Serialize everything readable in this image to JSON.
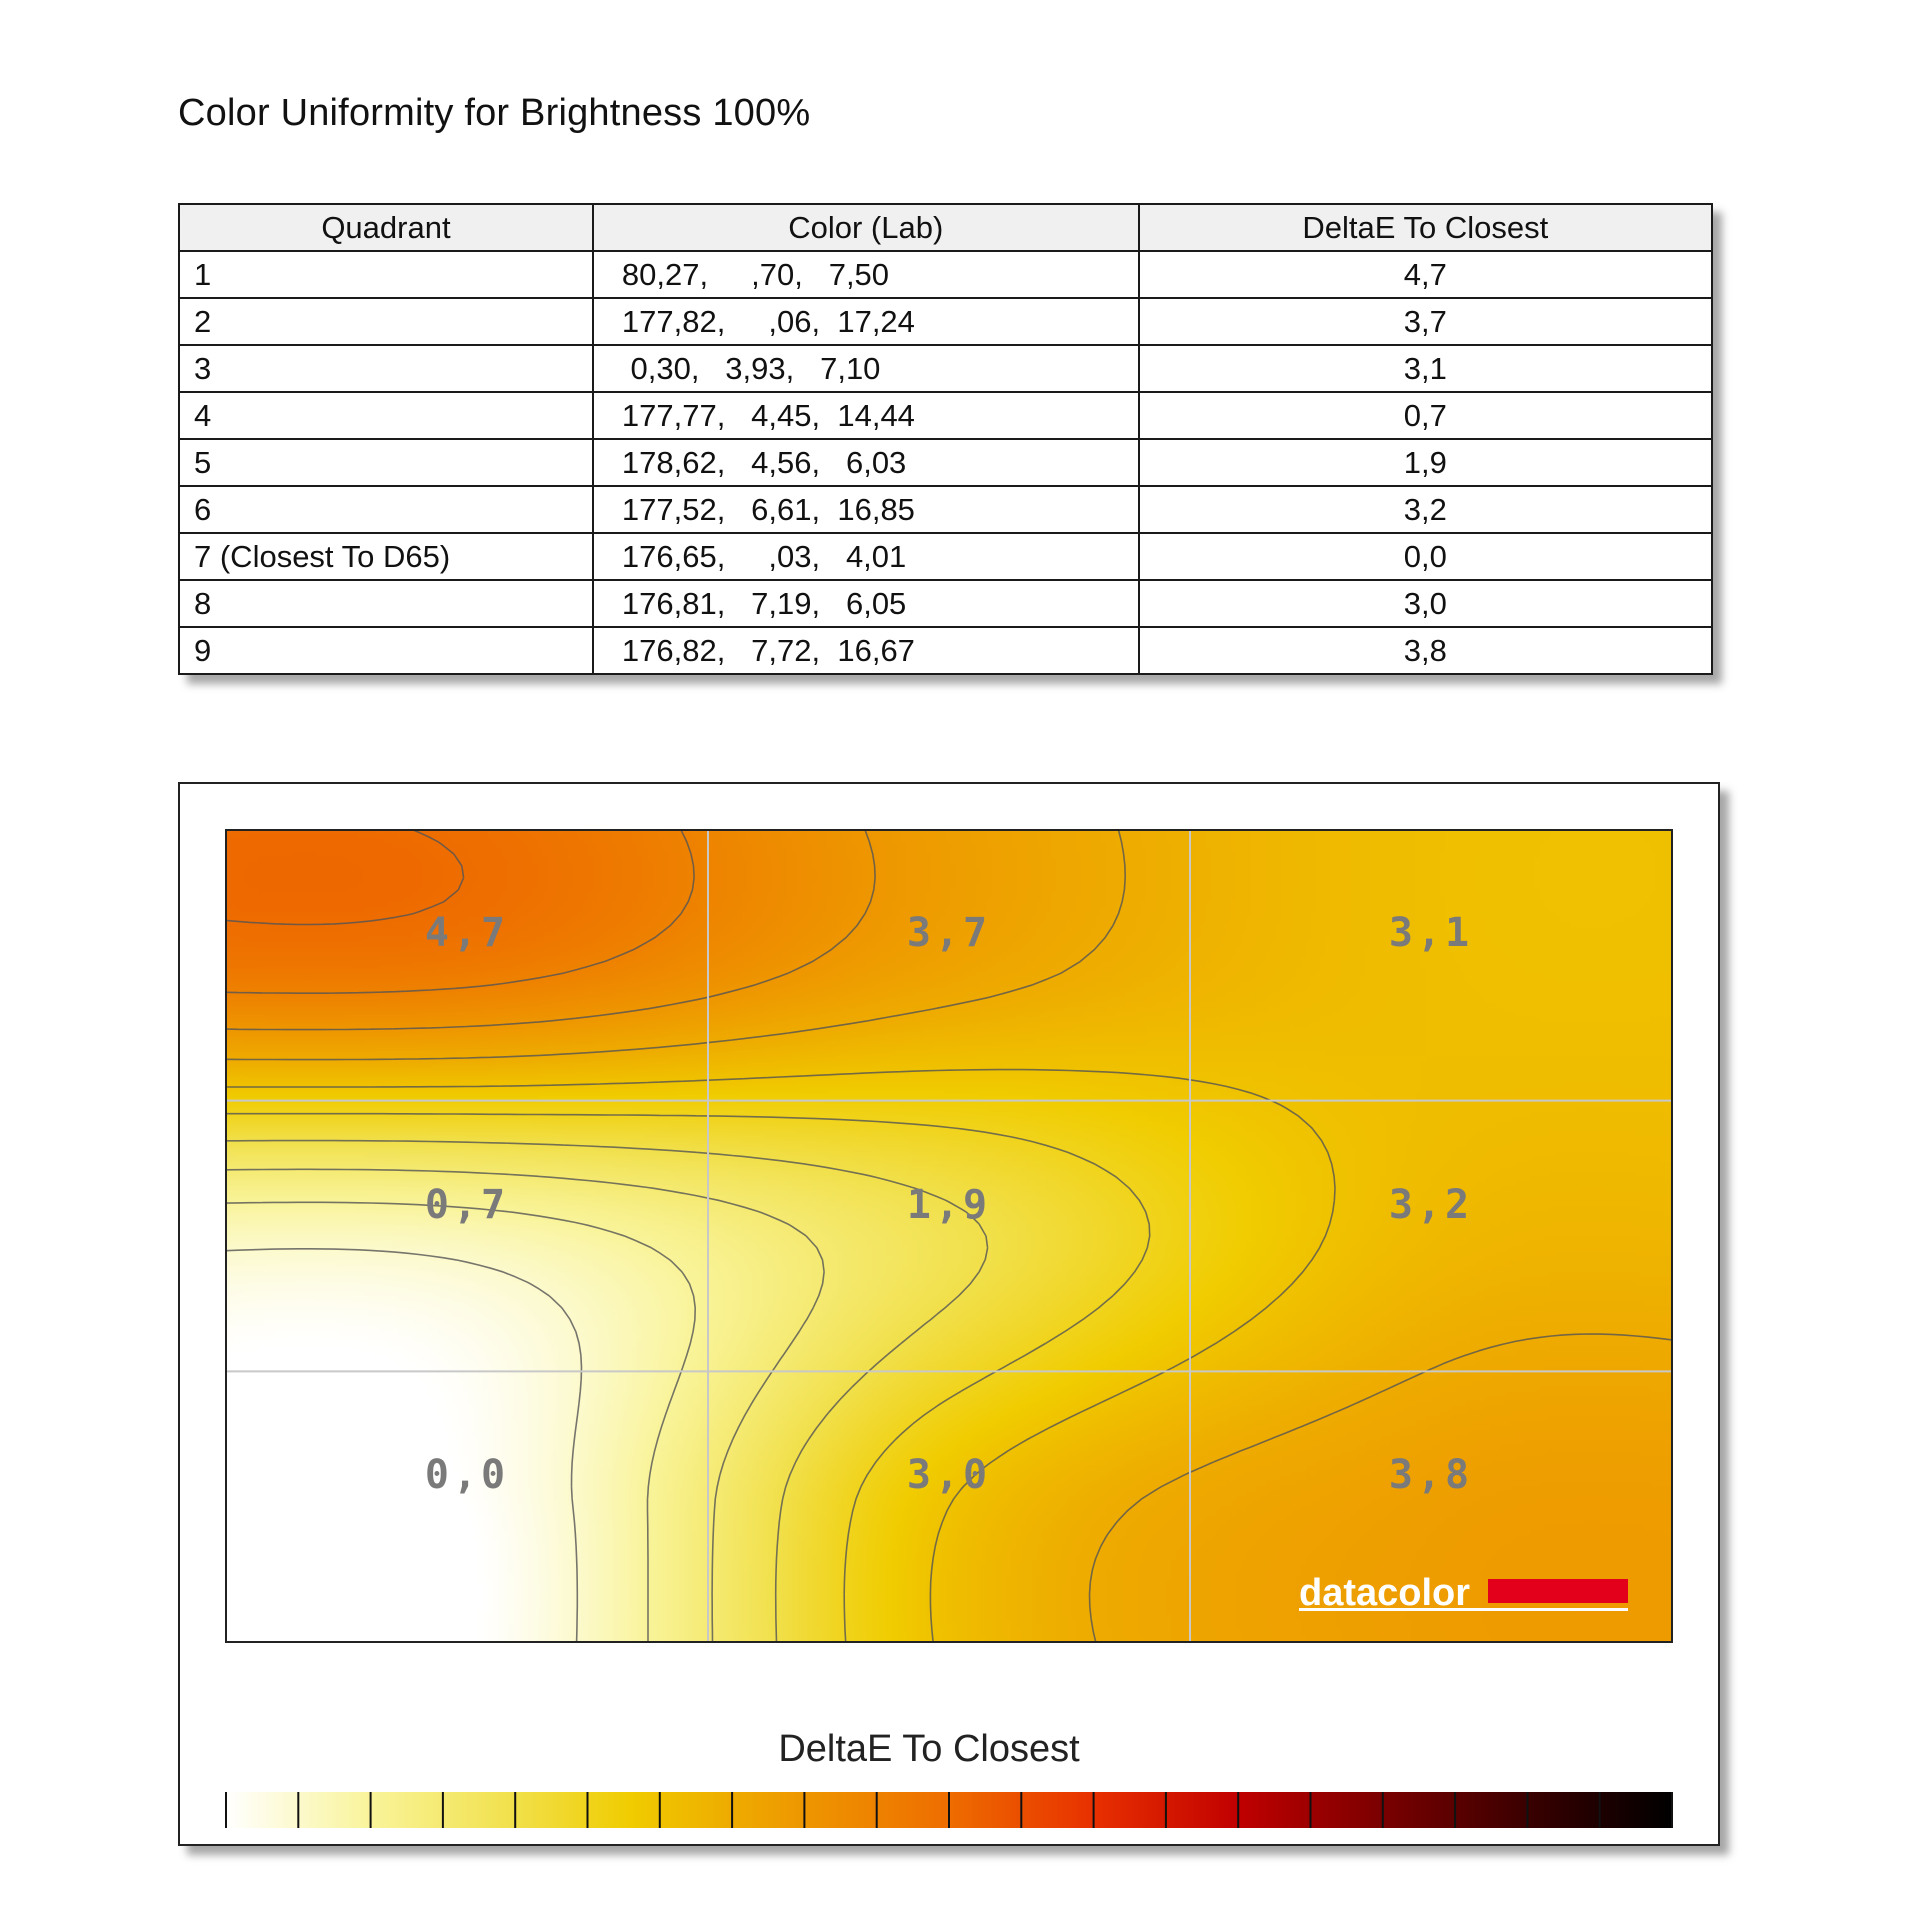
{
  "page": {
    "title": "Color Uniformity for Brightness 100%"
  },
  "table": {
    "headers": [
      "Quadrant",
      "Color (Lab)",
      "DeltaE To Closest"
    ],
    "rows": [
      {
        "quadrant": "1",
        "lab": "80,27,     ,70,   7,50",
        "delta": "4,7"
      },
      {
        "quadrant": "2",
        "lab": "177,82,     ,06,  17,24",
        "delta": "3,7"
      },
      {
        "quadrant": "3",
        "lab": " 0,30,   3,93,   7,10",
        "delta": "3,1"
      },
      {
        "quadrant": "4",
        "lab": "177,77,   4,45,  14,44",
        "delta": "0,7"
      },
      {
        "quadrant": "5",
        "lab": "178,62,   4,56,   6,03",
        "delta": "1,9"
      },
      {
        "quadrant": "6",
        "lab": "177,52,   6,61,  16,85",
        "delta": "3,2"
      },
      {
        "quadrant": "7 (Closest To D65)",
        "lab": "176,65,     ,03,   4,01",
        "delta": "0,0"
      },
      {
        "quadrant": "8",
        "lab": "176,81,   7,19,   6,05",
        "delta": "3,0"
      },
      {
        "quadrant": "9",
        "lab": "176,82,   7,72,  16,67",
        "delta": "3,8"
      }
    ]
  },
  "chart_data": {
    "type": "heatmap",
    "grid_rows": 3,
    "grid_cols": 3,
    "cells": [
      {
        "row": 0,
        "col": 0,
        "value": 4.7,
        "label": "4,7"
      },
      {
        "row": 0,
        "col": 1,
        "value": 3.7,
        "label": "3,7"
      },
      {
        "row": 0,
        "col": 2,
        "value": 3.1,
        "label": "3,1"
      },
      {
        "row": 1,
        "col": 0,
        "value": 0.7,
        "label": "0,7"
      },
      {
        "row": 1,
        "col": 1,
        "value": 1.9,
        "label": "1,9"
      },
      {
        "row": 1,
        "col": 2,
        "value": 3.2,
        "label": "3,2"
      },
      {
        "row": 2,
        "col": 0,
        "value": 0.0,
        "label": "0,0"
      },
      {
        "row": 2,
        "col": 1,
        "value": 3.0,
        "label": "3,0"
      },
      {
        "row": 2,
        "col": 2,
        "value": 3.8,
        "label": "3,8"
      }
    ],
    "contour_step": 0.5,
    "colorbar": {
      "title": "DeltaE To Closest",
      "range": [
        0,
        10
      ],
      "ticks": [
        "0.0",
        "0.5",
        "1.0",
        "1.5",
        "2.0",
        "2.5",
        "3.0",
        "3.5",
        "4.0",
        "4.5",
        "5.0",
        "5.5",
        "6.0",
        "6.5",
        "7.0",
        "7.5",
        "8.0",
        "8.5",
        "9.0",
        "9.5",
        "10.0"
      ],
      "stops": [
        {
          "v": 0.0,
          "c": "#ffffff"
        },
        {
          "v": 1.0,
          "c": "#f9f49a"
        },
        {
          "v": 2.0,
          "c": "#f1e04a"
        },
        {
          "v": 2.8,
          "c": "#f0cc00"
        },
        {
          "v": 3.5,
          "c": "#eeab00"
        },
        {
          "v": 4.3,
          "c": "#ee8a00"
        },
        {
          "v": 5.0,
          "c": "#ee6d00"
        },
        {
          "v": 6.0,
          "c": "#e83000"
        },
        {
          "v": 7.0,
          "c": "#c00000"
        },
        {
          "v": 8.0,
          "c": "#7a0000"
        },
        {
          "v": 9.0,
          "c": "#3a0000"
        },
        {
          "v": 10.0,
          "c": "#000000"
        }
      ]
    },
    "logo": {
      "text": "datacolor",
      "bar_color": "#e3001b"
    }
  }
}
